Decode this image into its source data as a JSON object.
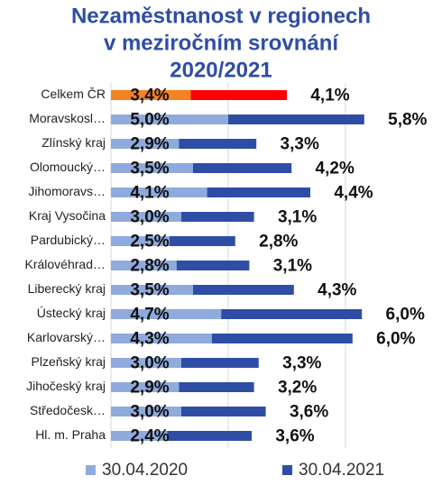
{
  "chart_data": {
    "type": "stacked_barh",
    "title": [
      "Nezaměstnanost v regionech",
      "v meziročním srovnání",
      "2020/2021"
    ],
    "categories": [
      "Celkem ČR",
      "Moravskosl…",
      "Zlínský kraj",
      "Olomoucký…",
      "Jihomoravs…",
      "Kraj Vysočina",
      "Pardubický…",
      "Královéhrad…",
      "Liberecký kraj",
      "Ústecký kraj",
      "Karlovarský…",
      "Plzeňský kraj",
      "Jihočeský kraj",
      "Středočesk…",
      "Hl. m. Praha"
    ],
    "series": [
      {
        "name": "30.04.2020",
        "color": "#8faadc",
        "colors": [
          "#f58220",
          "#8faadc",
          "#8faadc",
          "#8faadc",
          "#8faadc",
          "#8faadc",
          "#8faadc",
          "#8faadc",
          "#8faadc",
          "#8faadc",
          "#8faadc",
          "#8faadc",
          "#8faadc",
          "#8faadc",
          "#8faadc"
        ],
        "values": [
          3.4,
          5.0,
          2.9,
          3.5,
          4.1,
          3.0,
          2.5,
          2.8,
          3.5,
          4.7,
          4.3,
          3.0,
          2.9,
          3.0,
          2.4
        ],
        "value_labels": [
          "3,4%",
          "5,0%",
          "2,9%",
          "3,5%",
          "4,1%",
          "3,0%",
          "2,5%",
          "2,8%",
          "3,5%",
          "4,7%",
          "4,3%",
          "3,0%",
          "2,9%",
          "3,0%",
          "2,4%"
        ]
      },
      {
        "name": "30.04.2021",
        "color": "#2e4ea5",
        "colors": [
          "#ff0000",
          "#2e4ea5",
          "#2e4ea5",
          "#2e4ea5",
          "#2e4ea5",
          "#2e4ea5",
          "#2e4ea5",
          "#2e4ea5",
          "#2e4ea5",
          "#2e4ea5",
          "#2e4ea5",
          "#2e4ea5",
          "#2e4ea5",
          "#2e4ea5",
          "#2e4ea5"
        ],
        "values": [
          4.1,
          5.8,
          3.3,
          4.2,
          4.4,
          3.1,
          2.8,
          3.1,
          4.3,
          6.0,
          6.0,
          3.3,
          3.2,
          3.6,
          3.6
        ],
        "value_labels": [
          "4,1%",
          "5,8%",
          "3,3%",
          "4,2%",
          "4,4%",
          "3,1%",
          "2,8%",
          "3,1%",
          "4,3%",
          "6,0%",
          "6,0%",
          "3,3%",
          "3,2%",
          "3,6%",
          "3,6%"
        ]
      }
    ],
    "xlim": [
      0,
      14
    ],
    "xticks": [
      0,
      5,
      10
    ],
    "grid": true,
    "legend": "bottom"
  }
}
